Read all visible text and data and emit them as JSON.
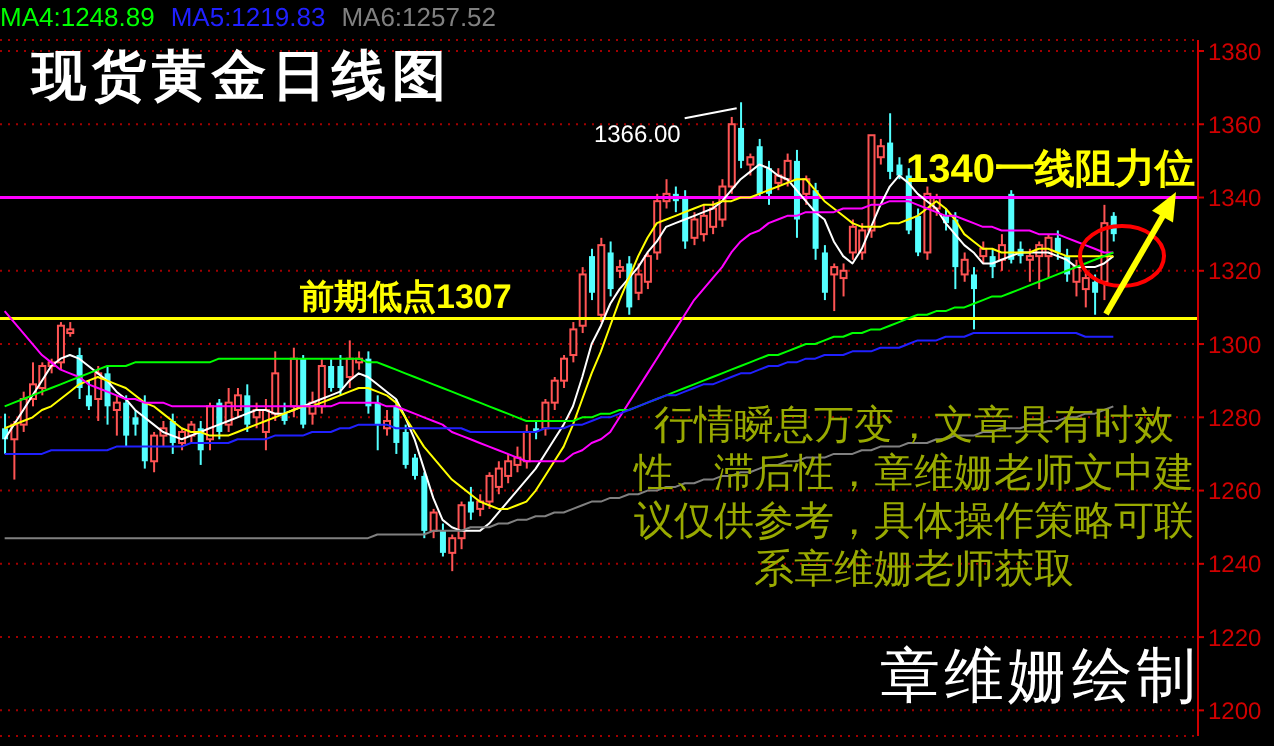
{
  "chart_data": {
    "type": "candlestick",
    "title": "现货黄金日线图",
    "categories": [
      null,
      null,
      null,
      null,
      null,
      null,
      null,
      null,
      null,
      null,
      null,
      null,
      null,
      null,
      null,
      null,
      null,
      null,
      null,
      null,
      null,
      null,
      null,
      null,
      null,
      null,
      null,
      null,
      null,
      null,
      null,
      null,
      null,
      null,
      null,
      null,
      null,
      null,
      null,
      null,
      null,
      null,
      null,
      null,
      null,
      null,
      null,
      null,
      null,
      null,
      null,
      null,
      null,
      null,
      null,
      null,
      null,
      null,
      null,
      null,
      null,
      null,
      null,
      null,
      null,
      null,
      null,
      null,
      null,
      null,
      null,
      null,
      null,
      null,
      null,
      null,
      null,
      null,
      null,
      null,
      null,
      null,
      null,
      null,
      null,
      null,
      null,
      null,
      null,
      null,
      null,
      null,
      null,
      null,
      null,
      null,
      null,
      null,
      null,
      null,
      null,
      null,
      null,
      null,
      null,
      null,
      null,
      null,
      null,
      null,
      null,
      null,
      null,
      null,
      null,
      null,
      null,
      null,
      null,
      null
    ],
    "ohlc": [
      [
        1277,
        1281,
        1270,
        1274
      ],
      [
        1274,
        1279,
        1263,
        1278
      ],
      [
        1278,
        1287,
        1276,
        1285
      ],
      [
        1285,
        1295,
        1283,
        1289
      ],
      [
        1288,
        1295,
        1286,
        1294
      ],
      [
        1294,
        1296,
        1292,
        1295
      ],
      [
        1295,
        1306,
        1293,
        1305
      ],
      [
        1303,
        1306,
        1302,
        1304
      ],
      [
        1297,
        1299,
        1285,
        1288
      ],
      [
        1286,
        1290,
        1282,
        1283
      ],
      [
        1285,
        1294,
        1279,
        1292
      ],
      [
        1292,
        1294,
        1278,
        1283
      ],
      [
        1282,
        1286,
        1275,
        1284
      ],
      [
        1284,
        1286,
        1272,
        1275
      ],
      [
        1280,
        1282,
        1275,
        1278
      ],
      [
        1284,
        1286,
        1266,
        1268
      ],
      [
        1268,
        1276,
        1265,
        1275
      ],
      [
        1275,
        1279,
        1272,
        1277
      ],
      [
        1279,
        1281,
        1270,
        1273
      ],
      [
        1273,
        1277,
        1271,
        1276
      ],
      [
        1275,
        1279,
        1273,
        1278
      ],
      [
        1277,
        1279,
        1267,
        1271
      ],
      [
        1274,
        1284,
        1271,
        1283
      ],
      [
        1284,
        1285,
        1274,
        1276
      ],
      [
        1278,
        1288,
        1276,
        1284
      ],
      [
        1282,
        1288,
        1280,
        1286
      ],
      [
        1286,
        1289,
        1276,
        1278
      ],
      [
        1280,
        1284,
        1277,
        1282
      ],
      [
        1276,
        1285,
        1271,
        1282
      ],
      [
        1281,
        1298,
        1279,
        1292
      ],
      [
        1281,
        1284,
        1278,
        1279
      ],
      [
        1283,
        1299,
        1280,
        1296
      ],
      [
        1296,
        1297,
        1277,
        1278
      ],
      [
        1281,
        1287,
        1278,
        1284
      ],
      [
        1283,
        1296,
        1281,
        1294
      ],
      [
        1294,
        1296,
        1287,
        1288
      ],
      [
        1294,
        1297,
        1286,
        1288
      ],
      [
        1291,
        1301,
        1288,
        1296
      ],
      [
        1295,
        1298,
        1293,
        1296
      ],
      [
        1296,
        1298,
        1281,
        1283
      ],
      [
        1284,
        1286,
        1271,
        1278
      ],
      [
        1277,
        1282,
        1275,
        1279
      ],
      [
        1283,
        1285,
        1270,
        1273
      ],
      [
        1276,
        1278,
        1266,
        1267
      ],
      [
        1269,
        1270,
        1263,
        1264
      ],
      [
        1264,
        1265,
        1247,
        1249
      ],
      [
        1249,
        1255,
        1247,
        1254
      ],
      [
        1249,
        1251,
        1242,
        1243
      ],
      [
        1243,
        1248,
        1238,
        1247
      ],
      [
        1247,
        1257,
        1244,
        1256
      ],
      [
        1257,
        1261,
        1252,
        1254
      ],
      [
        1255,
        1259,
        1253,
        1257
      ],
      [
        1257,
        1265,
        1255,
        1264
      ],
      [
        1261,
        1268,
        1259,
        1266
      ],
      [
        1264,
        1270,
        1262,
        1268
      ],
      [
        1267,
        1272,
        1265,
        1269
      ],
      [
        1268,
        1278,
        1266,
        1276
      ],
      [
        1277,
        1279,
        1274,
        1276
      ],
      [
        1277,
        1285,
        1275,
        1284
      ],
      [
        1284,
        1291,
        1282,
        1290
      ],
      [
        1290,
        1297,
        1288,
        1296
      ],
      [
        1297,
        1306,
        1295,
        1304
      ],
      [
        1305,
        1321,
        1303,
        1319
      ],
      [
        1324,
        1326,
        1312,
        1314
      ],
      [
        1308,
        1329,
        1306,
        1327
      ],
      [
        1325,
        1328,
        1313,
        1315
      ],
      [
        1320,
        1323,
        1318,
        1321
      ],
      [
        1322,
        1324,
        1308,
        1310
      ],
      [
        1314,
        1322,
        1312,
        1319
      ],
      [
        1317,
        1325,
        1315,
        1324
      ],
      [
        1325,
        1341,
        1323,
        1339
      ],
      [
        1339,
        1345,
        1337,
        1341
      ],
      [
        1341,
        1343,
        1336,
        1339
      ],
      [
        1340,
        1342,
        1326,
        1328
      ],
      [
        1329,
        1336,
        1327,
        1334
      ],
      [
        1330,
        1338,
        1328,
        1335
      ],
      [
        1332,
        1339,
        1330,
        1337
      ],
      [
        1334,
        1345,
        1332,
        1343
      ],
      [
        1343,
        1362,
        1341,
        1360
      ],
      [
        1359,
        1366,
        1348,
        1350
      ],
      [
        1349,
        1352,
        1346,
        1351
      ],
      [
        1354,
        1356,
        1340,
        1341
      ],
      [
        1348,
        1350,
        1338,
        1341
      ],
      [
        1344,
        1348,
        1342,
        1346
      ],
      [
        1345,
        1352,
        1343,
        1350
      ],
      [
        1350,
        1353,
        1329,
        1334
      ],
      [
        1341,
        1346,
        1338,
        1345
      ],
      [
        1342,
        1344,
        1323,
        1326
      ],
      [
        1325,
        1327,
        1312,
        1314
      ],
      [
        1319,
        1322,
        1309,
        1321
      ],
      [
        1318,
        1322,
        1313,
        1320
      ],
      [
        1325,
        1334,
        1323,
        1332
      ],
      [
        1325,
        1333,
        1323,
        1331
      ],
      [
        1331,
        1357,
        1329,
        1357
      ],
      [
        1351,
        1356,
        1349,
        1354
      ],
      [
        1355,
        1363,
        1345,
        1347
      ],
      [
        1349,
        1351,
        1345,
        1346
      ],
      [
        1346,
        1348,
        1330,
        1331
      ],
      [
        1335,
        1337,
        1324,
        1325
      ],
      [
        1325,
        1343,
        1323,
        1341
      ],
      [
        1337,
        1341,
        1335,
        1340
      ],
      [
        1335,
        1337,
        1331,
        1333
      ],
      [
        1334,
        1336,
        1315,
        1321
      ],
      [
        1319,
        1325,
        1317,
        1323
      ],
      [
        1319,
        1321,
        1304,
        1315
      ],
      [
        1324,
        1328,
        1322,
        1326
      ],
      [
        1324,
        1326,
        1318,
        1321
      ],
      [
        1323,
        1330,
        1320,
        1327
      ],
      [
        1341,
        1342,
        1322,
        1323
      ],
      [
        1326,
        1328,
        1322,
        1324
      ],
      [
        1323,
        1326,
        1317,
        1324
      ],
      [
        1324,
        1328,
        1315,
        1327
      ],
      [
        1324,
        1330,
        1318,
        1329
      ],
      [
        1329,
        1331,
        1323,
        1325
      ],
      [
        1324,
        1326,
        1317,
        1319
      ],
      [
        1317,
        1323,
        1313,
        1321
      ],
      [
        1315,
        1320,
        1310,
        1318
      ],
      [
        1317,
        1319,
        1308,
        1314
      ],
      [
        1317,
        1338,
        1312,
        1333
      ],
      [
        1335,
        1336,
        1328,
        1330
      ]
    ],
    "colors": [
      "#54ffff",
      "#ff5454",
      "#ff5454",
      "#ff5454",
      "#ff5454",
      "#ff5454",
      "#ff5454",
      "#ff5454",
      "#54ffff",
      "#54ffff",
      "#ff5454",
      "#54ffff",
      "#ff5454",
      "#54ffff",
      "#54ffff",
      "#54ffff",
      "#ff5454",
      "#ff5454",
      "#54ffff",
      "#ff5454",
      "#ff5454",
      "#54ffff",
      "#ff5454",
      "#54ffff",
      "#ff5454",
      "#ff5454",
      "#54ffff",
      "#ff5454",
      "#ff5454",
      "#ff5454",
      "#54ffff",
      "#ff5454",
      "#54ffff",
      "#ff5454",
      "#ff5454",
      "#54ffff",
      "#54ffff",
      "#ff5454",
      "#ff5454",
      "#54ffff",
      "#54ffff",
      "#ff5454",
      "#54ffff",
      "#54ffff",
      "#54ffff",
      "#54ffff",
      "#ff5454",
      "#54ffff",
      "#ff5454",
      "#ff5454",
      "#54ffff",
      "#ff5454",
      "#ff5454",
      "#ff5454",
      "#ff5454",
      "#ff5454",
      "#ff5454",
      "#54ffff",
      "#ff5454",
      "#ff5454",
      "#ff5454",
      "#ff5454",
      "#ff5454",
      "#54ffff",
      "#ff5454",
      "#54ffff",
      "#ff5454",
      "#54ffff",
      "#ff5454",
      "#ff5454",
      "#ff5454",
      "#ff5454",
      "#54ffff",
      "#54ffff",
      "#ff5454",
      "#ff5454",
      "#ff5454",
      "#ff5454",
      "#ff5454",
      "#54ffff",
      "#ff5454",
      "#54ffff",
      "#54ffff",
      "#ff5454",
      "#ff5454",
      "#54ffff",
      "#ff5454",
      "#54ffff",
      "#54ffff",
      "#ff5454",
      "#ff5454",
      "#ff5454",
      "#ff5454",
      "#ff5454",
      "#ff5454",
      "#54ffff",
      "#54ffff",
      "#54ffff",
      "#54ffff",
      "#ff5454",
      "#ff5454",
      "#54ffff",
      "#54ffff",
      "#ff5454",
      "#54ffff",
      "#ff5454",
      "#54ffff",
      "#ff5454",
      "#54ffff",
      "#54ffff",
      "#ff5454",
      "#ff5454",
      "#ff5454",
      "#54ffff",
      "#54ffff",
      "#ff5454",
      "#ff5454",
      "#54ffff",
      "#ff5454",
      "#54ffff"
    ],
    "series": [
      {
        "type": "line",
        "color": "#ffffff",
        "values": [
          1274,
          1278,
          1282,
          1286,
          1290,
          1294,
          1296,
          1297,
          1296,
          1294,
          1292,
          1290,
          1287,
          1285,
          1282,
          1280,
          1278,
          1276,
          1275,
          1274,
          1275,
          1276,
          1277,
          1278,
          1279,
          1280,
          1281,
          1282,
          1282,
          1281,
          1281,
          1282,
          1283,
          1284,
          1285,
          1286,
          1287,
          1290,
          1292,
          1291,
          1289,
          1287,
          1285,
          1280,
          1274,
          1266,
          1258,
          1252,
          1250,
          1249,
          1249,
          1249,
          1251,
          1254,
          1257,
          1260,
          1263,
          1266,
          1270,
          1274,
          1278,
          1283,
          1291,
          1300,
          1305,
          1311,
          1315,
          1318,
          1321,
          1325,
          1328,
          1332,
          1333,
          1334,
          1335,
          1336,
          1337,
          1339,
          1342,
          1345,
          1347,
          1349,
          1348,
          1346,
          1345,
          1342,
          1339,
          1336,
          1334,
          1328,
          1324,
          1322,
          1326,
          1332,
          1338,
          1343,
          1346,
          1344,
          1341,
          1339,
          1337,
          1333,
          1330,
          1327,
          1325,
          1322,
          1322,
          1323,
          1324,
          1325,
          1325,
          1325,
          1325,
          1324,
          1323,
          1321,
          1321,
          1321,
          1322,
          1324
        ]
      },
      {
        "type": "line",
        "color": "#ffff00",
        "values": [
          1277,
          1278,
          1279,
          1280,
          1282,
          1283,
          1285,
          1287,
          1289,
          1290,
          1291,
          1290,
          1289,
          1288,
          1286,
          1284,
          1283,
          1281,
          1279,
          1277,
          1276,
          1276,
          1275,
          1275,
          1275,
          1276,
          1277,
          1278,
          1279,
          1280,
          1281,
          1282,
          1283,
          1283,
          1284,
          1285,
          1286,
          1287,
          1288,
          1288,
          1287,
          1286,
          1284,
          1280,
          1276,
          1272,
          1269,
          1266,
          1263,
          1261,
          1259,
          1257,
          1256,
          1255,
          1255,
          1256,
          1257,
          1260,
          1264,
          1268,
          1272,
          1278,
          1285,
          1292,
          1298,
          1305,
          1312,
          1318,
          1324,
          1329,
          1333,
          1334,
          1335,
          1336,
          1337,
          1338,
          1338,
          1339,
          1339,
          1340,
          1340,
          1341,
          1342,
          1343,
          1344,
          1345,
          1345,
          1342,
          1339,
          1337,
          1335,
          1333,
          1332,
          1332,
          1332,
          1333,
          1333,
          1334,
          1335,
          1337,
          1339,
          1337,
          1334,
          1330,
          1328,
          1326,
          1326,
          1325,
          1325,
          1325,
          1325,
          1326,
          1326,
          1325,
          1324,
          1324,
          1324,
          1324,
          1324,
          1324
        ]
      },
      {
        "type": "line",
        "color": "#ff00ff",
        "values": [
          1309,
          1306,
          1303,
          1300,
          1297,
          1295,
          1293,
          1292,
          1291,
          1289,
          1288,
          1287,
          1286,
          1285,
          1285,
          1284,
          1284,
          1284,
          1283,
          1283,
          1283,
          1283,
          1283,
          1283,
          1283,
          1283,
          1283,
          1283,
          1283,
          1283,
          1283,
          1283,
          1283,
          1283,
          1283,
          1283,
          1284,
          1284,
          1284,
          1284,
          1284,
          1283,
          1283,
          1282,
          1281,
          1280,
          1279,
          1278,
          1276,
          1275,
          1274,
          1273,
          1272,
          1271,
          1270,
          1269,
          1268,
          1268,
          1268,
          1268,
          1268,
          1270,
          1271,
          1273,
          1274,
          1276,
          1280,
          1284,
          1288,
          1292,
          1296,
          1300,
          1304,
          1308,
          1312,
          1315,
          1318,
          1321,
          1325,
          1328,
          1330,
          1331,
          1333,
          1334,
          1335,
          1335,
          1336,
          1336,
          1336,
          1336,
          1337,
          1337,
          1337,
          1338,
          1338,
          1339,
          1339,
          1339,
          1338,
          1337,
          1336,
          1335,
          1335,
          1334,
          1333,
          1332,
          1332,
          1331,
          1331,
          1331,
          1331,
          1330,
          1330,
          1330,
          1329,
          1328,
          1327,
          1326,
          1325,
          1325
        ]
      },
      {
        "type": "line",
        "name": "MA4:1248.89",
        "color": "#00ff00",
        "values": [
          1283,
          1284,
          1285,
          1286,
          1287,
          1288,
          1289,
          1290,
          1291,
          1292,
          1293,
          1294,
          1294,
          1294,
          1295,
          1295,
          1295,
          1295,
          1295,
          1295,
          1295,
          1295,
          1295,
          1296,
          1296,
          1296,
          1296,
          1296,
          1296,
          1296,
          1296,
          1296,
          1296,
          1296,
          1296,
          1296,
          1296,
          1296,
          1296,
          1295,
          1295,
          1294,
          1293,
          1292,
          1291,
          1290,
          1289,
          1288,
          1287,
          1286,
          1285,
          1284,
          1283,
          1282,
          1281,
          1280,
          1279,
          1279,
          1279,
          1279,
          1279,
          1279,
          1280,
          1280,
          1281,
          1281,
          1282,
          1282,
          1283,
          1284,
          1285,
          1286,
          1287,
          1288,
          1289,
          1290,
          1291,
          1292,
          1293,
          1294,
          1295,
          1296,
          1297,
          1297,
          1298,
          1299,
          1300,
          1300,
          1301,
          1302,
          1302,
          1303,
          1303,
          1304,
          1304,
          1305,
          1306,
          1307,
          1308,
          1308,
          1309,
          1309,
          1310,
          1310,
          1311,
          1312,
          1313,
          1313,
          1314,
          1315,
          1316,
          1317,
          1318,
          1319,
          1320,
          1321,
          1322,
          1323,
          1324,
          1325
        ]
      },
      {
        "type": "line",
        "name": "MA5:1219.83",
        "color": "#2020ff",
        "values": [
          1270,
          1270,
          1270,
          1270,
          1270,
          1271,
          1271,
          1271,
          1271,
          1271,
          1271,
          1271,
          1272,
          1272,
          1272,
          1272,
          1272,
          1272,
          1272,
          1272,
          1273,
          1273,
          1273,
          1273,
          1273,
          1274,
          1274,
          1274,
          1274,
          1275,
          1275,
          1275,
          1275,
          1276,
          1276,
          1276,
          1277,
          1277,
          1278,
          1278,
          1278,
          1278,
          1277,
          1277,
          1277,
          1277,
          1277,
          1277,
          1277,
          1277,
          1276,
          1276,
          1276,
          1276,
          1276,
          1276,
          1276,
          1276,
          1277,
          1277,
          1277,
          1278,
          1278,
          1279,
          1280,
          1280,
          1281,
          1282,
          1283,
          1284,
          1285,
          1286,
          1286,
          1287,
          1288,
          1289,
          1289,
          1290,
          1291,
          1292,
          1292,
          1293,
          1294,
          1294,
          1295,
          1295,
          1296,
          1296,
          1297,
          1297,
          1297,
          1298,
          1298,
          1298,
          1299,
          1299,
          1299,
          1300,
          1301,
          1301,
          1301,
          1302,
          1302,
          1302,
          1303,
          1303,
          1303,
          1303,
          1303,
          1303,
          1303,
          1303,
          1303,
          1303,
          1303,
          1303,
          1302,
          1302,
          1302,
          1302
        ]
      },
      {
        "type": "line",
        "name": "MA6:1257.52",
        "color": "#808080",
        "values": [
          1247,
          1247,
          1247,
          1247,
          1247,
          1247,
          1247,
          1247,
          1247,
          1247,
          1247,
          1247,
          1247,
          1247,
          1247,
          1247,
          1247,
          1247,
          1247,
          1247,
          1247,
          1247,
          1247,
          1247,
          1247,
          1247,
          1247,
          1247,
          1247,
          1247,
          1247,
          1247,
          1247,
          1247,
          1247,
          1247,
          1247,
          1247,
          1247,
          1247,
          1248,
          1248,
          1248,
          1248,
          1248,
          1248,
          1249,
          1249,
          1249,
          1249,
          1250,
          1250,
          1250,
          1251,
          1251,
          1252,
          1252,
          1253,
          1253,
          1254,
          1254,
          1255,
          1256,
          1257,
          1257,
          1258,
          1258,
          1259,
          1259,
          1260,
          1260,
          1261,
          1261,
          1262,
          1262,
          1263,
          1263,
          1264,
          1264,
          1265,
          1265,
          1266,
          1267,
          1267,
          1268,
          1268,
          1269,
          1269,
          1269,
          1270,
          1270,
          1270,
          1271,
          1271,
          1272,
          1272,
          1272,
          1273,
          1273,
          1273,
          1274,
          1274,
          1275,
          1275,
          1275,
          1276,
          1276,
          1277,
          1277,
          1277,
          1278,
          1278,
          1279,
          1279,
          1280,
          1280,
          1281,
          1281,
          1282,
          1283
        ]
      }
    ],
    "ylim": [
      1193,
      1383
    ],
    "yticks": [
      1200,
      1220,
      1240,
      1260,
      1280,
      1300,
      1320,
      1340,
      1360,
      1380
    ],
    "tick_labels": "y",
    "grid": "y",
    "legend": "top left",
    "ref_lines": [
      {
        "axis": "y",
        "value": 1340,
        "label": "1340一线阻力位",
        "color": "#ff00ff"
      },
      {
        "axis": "y",
        "value": 1307,
        "label": "前期低点1307",
        "color": "#ffff00"
      }
    ],
    "annotations": [
      "行情瞬息万变，文章具有时效性、滞后性，章维姗老师文中建议仅供参考，具体操作策略可联系章维姗老师获取",
      "章维姗绘制",
      "1366.00"
    ]
  }
}
